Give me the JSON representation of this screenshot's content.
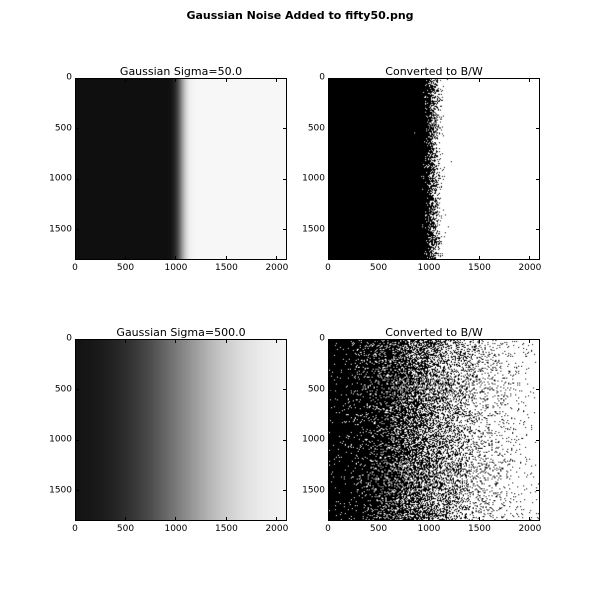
{
  "figure": {
    "title": "Gaussian Noise Added to fifty50.png"
  },
  "chart_data": [
    {
      "type": "heatmap",
      "title": "Gaussian Sigma=50.0",
      "x_ticks": [
        0,
        500,
        1000,
        1500,
        2000
      ],
      "y_ticks": [
        0,
        500,
        1000,
        1500
      ],
      "xlim": [
        0,
        2100
      ],
      "ylim": [
        1800,
        0
      ],
      "colormap": "gray",
      "edge_x": 1050,
      "blur_sigma": 50.0,
      "binarized": false
    },
    {
      "type": "heatmap",
      "title": "Converted to B/W",
      "x_ticks": [
        0,
        500,
        1000,
        1500,
        2000
      ],
      "y_ticks": [
        0,
        500,
        1000,
        1500
      ],
      "xlim": [
        0,
        2100
      ],
      "ylim": [
        1800,
        0
      ],
      "colormap": "gray",
      "edge_x": 1050,
      "blur_sigma": 50.0,
      "binarized": true
    },
    {
      "type": "heatmap",
      "title": "Gaussian Sigma=500.0",
      "x_ticks": [
        0,
        500,
        1000,
        1500,
        2000
      ],
      "y_ticks": [
        0,
        500,
        1000,
        1500
      ],
      "xlim": [
        0,
        2100
      ],
      "ylim": [
        1800,
        0
      ],
      "colormap": "gray",
      "edge_x": 1050,
      "blur_sigma": 500.0,
      "binarized": false
    },
    {
      "type": "heatmap",
      "title": "Converted to B/W",
      "x_ticks": [
        0,
        500,
        1000,
        1500,
        2000
      ],
      "y_ticks": [
        0,
        500,
        1000,
        1500
      ],
      "xlim": [
        0,
        2100
      ],
      "ylim": [
        1800,
        0
      ],
      "colormap": "gray",
      "edge_x": 1050,
      "blur_sigma": 500.0,
      "binarized": true
    }
  ]
}
